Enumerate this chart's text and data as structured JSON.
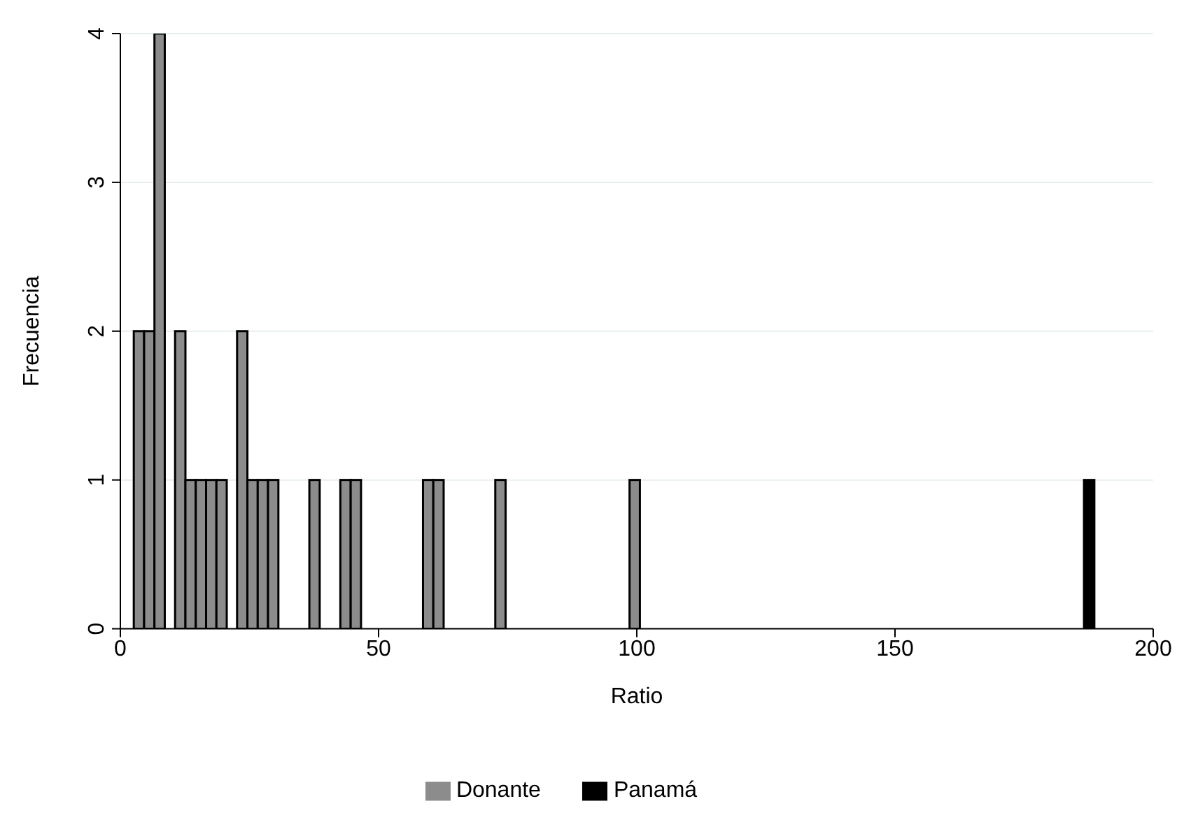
{
  "chart_data": {
    "type": "histogram",
    "xlabel": "Ratio",
    "ylabel": "Frecuencia",
    "bins": [
      2.6,
      4.6,
      6.6,
      8.6,
      10.6,
      12.6,
      14.6,
      16.6,
      18.6,
      20.6,
      22.6,
      24.6,
      26.6,
      28.6,
      30.6,
      36.6,
      38.6,
      42.6,
      44.6,
      46.6,
      58.6,
      60.6,
      62.6,
      72.6,
      74.6,
      98.6,
      100.6,
      186.6,
      188.6
    ],
    "series": [
      {
        "name": "Donante",
        "color": "#8c8c8c",
        "values": [
          2,
          2,
          4,
          0,
          2,
          1,
          1,
          1,
          1,
          0,
          2,
          1,
          1,
          1,
          0,
          1,
          0,
          1,
          1,
          0,
          1,
          1,
          0,
          1,
          0,
          1,
          0,
          0
        ]
      },
      {
        "name": "Panamá",
        "color": "#000000",
        "values": [
          0,
          0,
          0,
          0,
          0,
          0,
          0,
          0,
          0,
          0,
          0,
          0,
          0,
          0,
          0,
          0,
          0,
          0,
          0,
          0,
          0,
          0,
          0,
          0,
          0,
          0,
          0,
          1
        ]
      }
    ],
    "xlim": [
      0,
      200
    ],
    "xticks": [
      0,
      50,
      100,
      150,
      200
    ],
    "ylim": [
      0,
      4
    ],
    "yticks": [
      0,
      1,
      2,
      3,
      4
    ],
    "grid": "y",
    "legend": "bottom"
  }
}
